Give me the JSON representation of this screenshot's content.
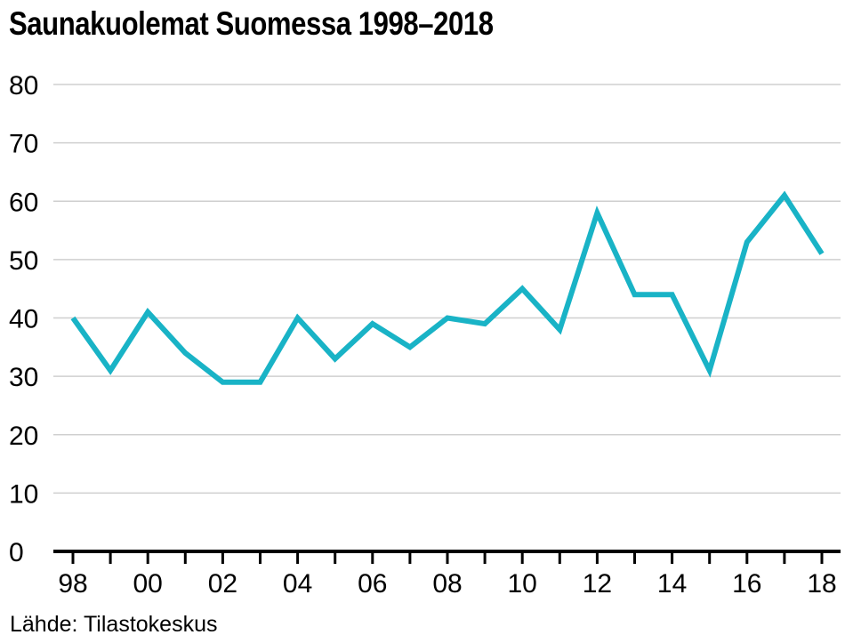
{
  "title": "Saunakuolemat Suomessa 1998–2018",
  "source": "Lähde: Tilastokeskus",
  "colors": {
    "line": "#19b3c6",
    "grid": "#cfcfcf",
    "axis": "#000000"
  },
  "chart_data": {
    "type": "line",
    "title": "Saunakuolemat Suomessa 1998–2018",
    "xlabel": "",
    "ylabel": "",
    "x": [
      1998,
      1999,
      2000,
      2001,
      2002,
      2003,
      2004,
      2005,
      2006,
      2007,
      2008,
      2009,
      2010,
      2011,
      2012,
      2013,
      2014,
      2015,
      2016,
      2017,
      2018
    ],
    "series": [
      {
        "values": [
          40,
          31,
          41,
          34,
          29,
          29,
          40,
          33,
          39,
          35,
          40,
          39,
          45,
          38,
          58,
          44,
          44,
          31,
          53,
          61,
          51
        ]
      }
    ],
    "ylim": [
      0,
      80
    ],
    "yticks": [
      0,
      10,
      20,
      30,
      40,
      50,
      60,
      70,
      80
    ],
    "xtick_labels": [
      {
        "x": 1998,
        "label": "98"
      },
      {
        "x": 2000,
        "label": "00"
      },
      {
        "x": 2002,
        "label": "02"
      },
      {
        "x": 2004,
        "label": "04"
      },
      {
        "x": 2006,
        "label": "06"
      },
      {
        "x": 2008,
        "label": "08"
      },
      {
        "x": 2010,
        "label": "10"
      },
      {
        "x": 2012,
        "label": "12"
      },
      {
        "x": 2014,
        "label": "14"
      },
      {
        "x": 2016,
        "label": "16"
      },
      {
        "x": 2018,
        "label": "18"
      }
    ],
    "grid": true,
    "legend": "none"
  }
}
